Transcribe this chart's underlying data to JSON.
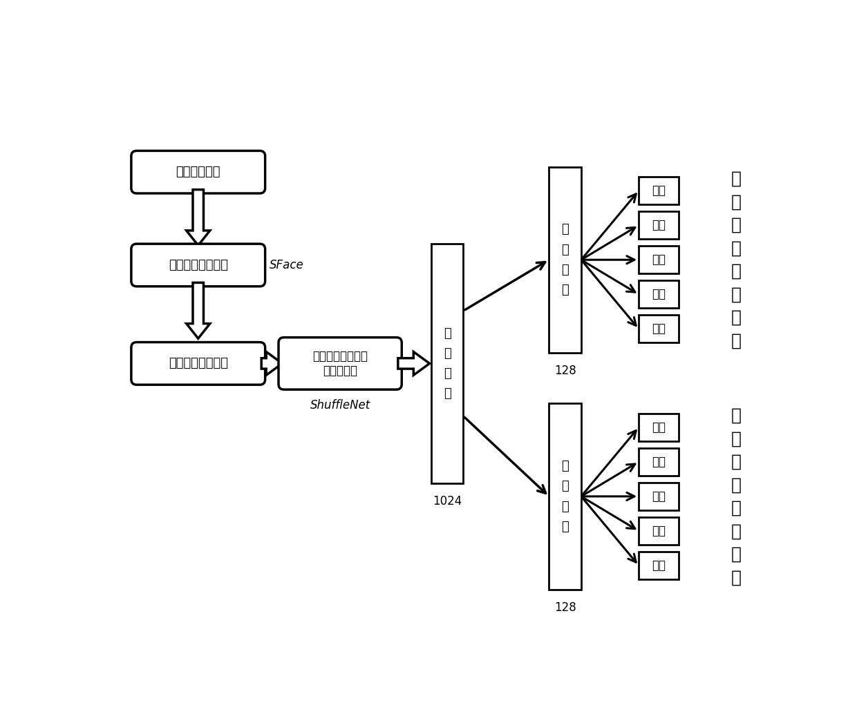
{
  "bg_color": "#ffffff",
  "box1_label": "截取的视频帧",
  "box2_label": "人脸检测网络模型",
  "box2_sublabel": "SFace",
  "box3_label": "检测到的人脸图像",
  "box4_line1": "人脸属性、表情特",
  "box4_line2": "征提取网络",
  "box4_sublabel": "ShuffleNet",
  "fc_main_label": "全\n连\n接\n层",
  "fc_main_number": "1024",
  "fc_top_label": "全\n连\n接\n层",
  "fc_top_number": "128",
  "fc_bot_label": "全\n连\n接\n层",
  "fc_bot_number": "128",
  "emotion_labels": [
    "沮丧",
    "紧张",
    "惊恐",
    "惊讶",
    "喜悦"
  ],
  "attr_labels": [
    "性别",
    "年龄",
    "肤色",
    "发型",
    "眼镜"
  ],
  "right_label_top": "五\n种\n情\n绪\n识\n别\n结\n果",
  "right_label_bot": "五\n种\n属\n性\n识\n别\n结\n果"
}
